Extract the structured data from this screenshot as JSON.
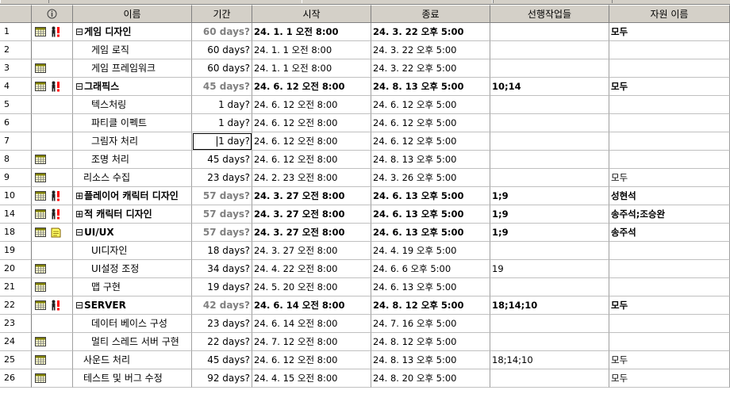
{
  "columns": {
    "info": "",
    "name": "이름",
    "duration": "기간",
    "start": "시작",
    "end": "종료",
    "predecessors": "선행작업들",
    "resources": "자원 이름"
  },
  "rows": [
    {
      "num": "1",
      "name": "게임 디자인",
      "toggle": "⊟",
      "indent": 0,
      "summary": true,
      "duration": "60 days?",
      "start": "24. 1. 1 오전 8:00",
      "end": "24. 3. 22 오후 5:00",
      "pred": "",
      "res": "모두",
      "icons": [
        "calendar",
        "resource"
      ]
    },
    {
      "num": "2",
      "name": "게임 로직",
      "toggle": "",
      "indent": 2,
      "summary": false,
      "duration": "60 days?",
      "start": "24. 1. 1 오전 8:00",
      "end": "24. 3. 22 오후 5:00",
      "pred": "",
      "res": "",
      "icons": []
    },
    {
      "num": "3",
      "name": "게임 프레임워크",
      "toggle": "",
      "indent": 2,
      "summary": false,
      "duration": "60 days?",
      "start": "24. 1. 1 오전 8:00",
      "end": "24. 3. 22 오후 5:00",
      "pred": "",
      "res": "",
      "icons": [
        "calendar"
      ]
    },
    {
      "num": "4",
      "name": "그래픽스",
      "toggle": "⊟",
      "indent": 0,
      "summary": true,
      "duration": "45 days?",
      "start": "24. 6. 12 오전 8:00",
      "end": "24. 8. 13 오후 5:00",
      "pred": "10;14",
      "res": "모두",
      "icons": [
        "calendar",
        "resource"
      ]
    },
    {
      "num": "5",
      "name": "텍스처링",
      "toggle": "",
      "indent": 2,
      "summary": false,
      "duration": "1 day?",
      "start": "24. 6. 12 오전 8:00",
      "end": "24. 6. 12 오후 5:00",
      "pred": "",
      "res": "",
      "icons": []
    },
    {
      "num": "6",
      "name": "파티클 이펙트",
      "toggle": "",
      "indent": 2,
      "summary": false,
      "duration": "1 day?",
      "start": "24. 6. 12 오전 8:00",
      "end": "24. 6. 12 오후 5:00",
      "pred": "",
      "res": "",
      "icons": []
    },
    {
      "num": "7",
      "name": "그림자 처리",
      "toggle": "",
      "indent": 2,
      "summary": false,
      "duration": "1 day?",
      "start": "24. 6. 12 오전 8:00",
      "end": "24. 6. 12 오후 5:00",
      "pred": "",
      "res": "",
      "icons": [],
      "editing": true
    },
    {
      "num": "8",
      "name": "조명 처리",
      "toggle": "",
      "indent": 2,
      "summary": false,
      "duration": "45 days?",
      "start": "24. 6. 12 오전 8:00",
      "end": "24. 8. 13 오후 5:00",
      "pred": "",
      "res": "",
      "icons": [
        "calendar"
      ]
    },
    {
      "num": "9",
      "name": "리소스 수집",
      "toggle": "",
      "indent": 1,
      "summary": false,
      "duration": "23 days?",
      "start": "24. 2. 23 오전 8:00",
      "end": "24. 3. 26 오후 5:00",
      "pred": "",
      "res": "모두",
      "icons": [
        "calendar"
      ]
    },
    {
      "num": "10",
      "name": "플레이어 캐릭터 디자인",
      "toggle": "⊞",
      "indent": 0,
      "summary": true,
      "duration": "57 days?",
      "start": "24. 3. 27 오전 8:00",
      "end": "24. 6. 13 오후 5:00",
      "pred": "1;9",
      "res": "성현석",
      "icons": [
        "calendar",
        "resource"
      ]
    },
    {
      "num": "14",
      "name": "적 캐릭터 디자인",
      "toggle": "⊞",
      "indent": 0,
      "summary": true,
      "duration": "57 days?",
      "start": "24. 3. 27 오전 8:00",
      "end": "24. 6. 13 오후 5:00",
      "pred": "1;9",
      "res": "송주석;조승완",
      "icons": [
        "calendar",
        "resource"
      ]
    },
    {
      "num": "18",
      "name": "UI/UX",
      "toggle": "⊟",
      "indent": 0,
      "summary": true,
      "duration": "57 days?",
      "start": "24. 3. 27 오전 8:00",
      "end": "24. 6. 13 오후 5:00",
      "pred": "1;9",
      "res": "송주석",
      "icons": [
        "calendar",
        "note"
      ]
    },
    {
      "num": "19",
      "name": "UI디자인",
      "toggle": "",
      "indent": 2,
      "summary": false,
      "duration": "18 days?",
      "start": "24. 3. 27 오전 8:00",
      "end": "24. 4. 19 오후 5:00",
      "pred": "",
      "res": "",
      "icons": []
    },
    {
      "num": "20",
      "name": "UI설정 조정",
      "toggle": "",
      "indent": 2,
      "summary": false,
      "duration": "34 days?",
      "start": "24. 4. 22 오전 8:00",
      "end": "24. 6. 6 오후 5:00",
      "pred": "19",
      "res": "",
      "icons": [
        "calendar"
      ]
    },
    {
      "num": "21",
      "name": "맵 구현",
      "toggle": "",
      "indent": 2,
      "summary": false,
      "duration": "19 days?",
      "start": "24. 5. 20 오전 8:00",
      "end": "24. 6. 13 오후 5:00",
      "pred": "",
      "res": "",
      "icons": [
        "calendar"
      ]
    },
    {
      "num": "22",
      "name": "SERVER",
      "toggle": "⊟",
      "indent": 0,
      "summary": true,
      "duration": "42 days?",
      "start": "24. 6. 14 오전 8:00",
      "end": "24. 8. 12 오후 5:00",
      "pred": "18;14;10",
      "res": "모두",
      "icons": [
        "calendar",
        "resource"
      ]
    },
    {
      "num": "23",
      "name": "데이터 베이스 구성",
      "toggle": "",
      "indent": 2,
      "summary": false,
      "duration": "23 days?",
      "start": "24. 6. 14 오전 8:00",
      "end": "24. 7. 16 오후 5:00",
      "pred": "",
      "res": "",
      "icons": []
    },
    {
      "num": "24",
      "name": "멀티 스레드 서버 구현",
      "toggle": "",
      "indent": 2,
      "summary": false,
      "duration": "22 days?",
      "start": "24. 7. 12 오전 8:00",
      "end": "24. 8. 12 오후 5:00",
      "pred": "",
      "res": "",
      "icons": [
        "calendar"
      ]
    },
    {
      "num": "25",
      "name": "사운드 처리",
      "toggle": "",
      "indent": 1,
      "summary": false,
      "duration": "45 days?",
      "start": "24. 6. 12 오전 8:00",
      "end": "24. 8. 13 오후 5:00",
      "pred": "18;14;10",
      "res": "모두",
      "icons": [
        "calendar"
      ]
    },
    {
      "num": "26",
      "name": "테스트 및 버그 수정",
      "toggle": "",
      "indent": 1,
      "summary": false,
      "duration": "92 days?",
      "start": "24. 4. 15 오전 8:00",
      "end": "24. 8. 20 오후 5:00",
      "pred": "",
      "res": "모두",
      "icons": [
        "calendar"
      ]
    }
  ]
}
